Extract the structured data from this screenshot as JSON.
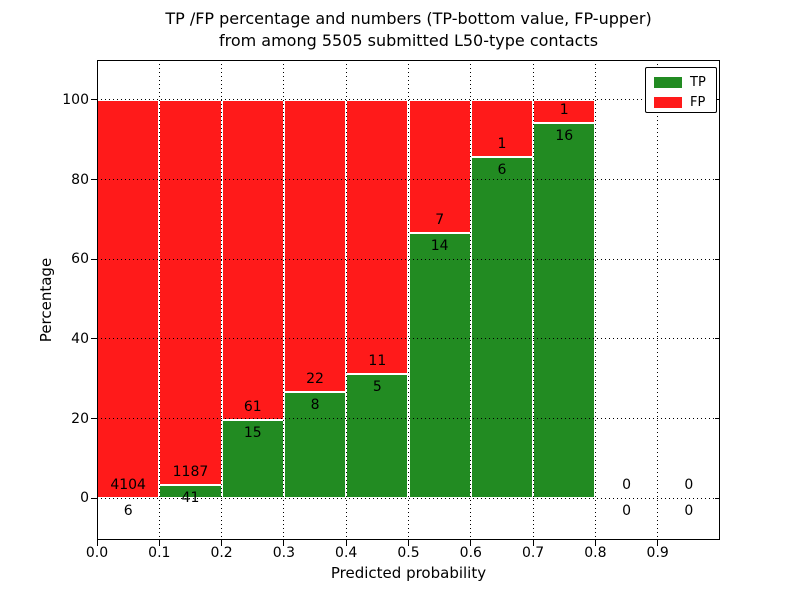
{
  "title": {
    "line1": "TP /FP percentage and numbers (TP-bottom value, FP-upper)",
    "line2": "from among 5505 submitted L50-type contacts"
  },
  "chart_data": {
    "type": "bar",
    "subtype": "stacked-100-percent-with-counts",
    "title": "TP /FP percentage and numbers (TP-bottom value, FP-upper) from among 5505 submitted L50-type contacts",
    "xlabel": "Predicted probability",
    "ylabel": "Percentage",
    "total_submitted": 5505,
    "bin_width": 0.1,
    "bin_starts": [
      0.0,
      0.1,
      0.2,
      0.3,
      0.4,
      0.5,
      0.6,
      0.7,
      0.8,
      0.9
    ],
    "x_tick_labels": [
      "0.0",
      "0.1",
      "0.2",
      "0.3",
      "0.4",
      "0.5",
      "0.6",
      "0.7",
      "0.8",
      "0.9"
    ],
    "y_tick_values": [
      0,
      20,
      40,
      60,
      80,
      100
    ],
    "y_tick_labels": [
      "0",
      "20",
      "40",
      "60",
      "80",
      "100"
    ],
    "xlim": [
      0.0,
      1.0
    ],
    "ylim": [
      -10.5,
      110
    ],
    "grid": "dotted",
    "series": [
      {
        "name": "TP",
        "position": "bottom",
        "color": "#228B22",
        "values": [
          6,
          41,
          15,
          8,
          5,
          14,
          6,
          16,
          0,
          0
        ]
      },
      {
        "name": "FP",
        "position": "top",
        "color": "#ff1a1a",
        "values": [
          4104,
          1187,
          61,
          22,
          11,
          7,
          1,
          1,
          0,
          0
        ]
      }
    ],
    "tp_percent_by_bin": [
      0.15,
      3.34,
      19.74,
      26.67,
      31.25,
      66.67,
      85.71,
      94.12,
      null,
      null
    ],
    "legend": {
      "position": "upper right",
      "entries": [
        {
          "label": "TP",
          "color": "#228B22"
        },
        {
          "label": "FP",
          "color": "#ff1a1a"
        }
      ]
    }
  }
}
